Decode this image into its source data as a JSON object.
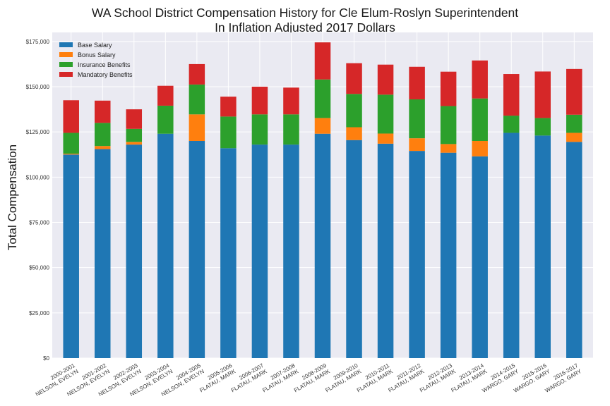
{
  "chart_data": {
    "type": "bar",
    "stacked": true,
    "title_line1": "WA School District Compensation History for Cle Elum-Roslyn Superintendent",
    "title_line2": "In Inflation Adjusted 2017 Dollars",
    "xlabel": "",
    "ylabel": "Total Compensation",
    "ylim": [
      0,
      180000
    ],
    "yticks": [
      0,
      25000,
      50000,
      75000,
      100000,
      125000,
      150000,
      175000
    ],
    "ytick_labels": [
      "$0",
      "$25,000",
      "$50,000",
      "$75,000",
      "$100,000",
      "$125,000",
      "$150,000",
      "$175,000"
    ],
    "grid": true,
    "legend_position": "top-left",
    "categories": [
      [
        "2000-2001",
        "NELSON, EVELYN"
      ],
      [
        "2001-2002",
        "NELSON, EVELYN"
      ],
      [
        "2002-2003",
        "NELSON, EVELYN"
      ],
      [
        "2003-2004",
        "NELSON, EVELYN"
      ],
      [
        "2004-2005",
        "NELSON, EVELYN"
      ],
      [
        "2005-2006",
        "FLATAU, MARK"
      ],
      [
        "2006-2007",
        "FLATAU, MARK"
      ],
      [
        "2007-2008",
        "FLATAU, MARK"
      ],
      [
        "2008-2009",
        "FLATAU, MARK"
      ],
      [
        "2009-2010",
        "FLATAU, MARK"
      ],
      [
        "2010-2011",
        "FLATAU, MARK"
      ],
      [
        "2011-2012",
        "FLATAU, MARK"
      ],
      [
        "2012-2013",
        "FLATAU, MARK"
      ],
      [
        "2013-2014",
        "FLATAU, MARK"
      ],
      [
        "2014-2015",
        "WARGO, GARY"
      ],
      [
        "2015-2016",
        "WARGO, GARY"
      ],
      [
        "2016-2017",
        "WARGO, GARY"
      ]
    ],
    "series": [
      {
        "name": "Base Salary",
        "color": "#1f77b4",
        "values": [
          112500,
          115500,
          118000,
          124000,
          120000,
          116000,
          118000,
          118000,
          124000,
          120500,
          118500,
          114500,
          113500,
          111500,
          124500,
          123000,
          119500
        ]
      },
      {
        "name": "Bonus Salary",
        "color": "#ff7f0e",
        "values": [
          500,
          1700,
          1500,
          0,
          14700,
          0,
          0,
          0,
          8700,
          7100,
          5600,
          7000,
          4800,
          8500,
          0,
          0,
          5000
        ]
      },
      {
        "name": "Insurance Benefits",
        "color": "#2ca02c",
        "values": [
          11500,
          12800,
          7200,
          15500,
          16500,
          17500,
          16700,
          16700,
          21300,
          18400,
          21500,
          21500,
          21000,
          23500,
          9500,
          9700,
          10000
        ]
      },
      {
        "name": "Mandatory Benefits",
        "color": "#d62728",
        "values": [
          18000,
          12300,
          10800,
          11000,
          11300,
          11000,
          15300,
          14800,
          20500,
          17000,
          16600,
          18000,
          19000,
          21000,
          23000,
          25700,
          25300
        ]
      }
    ]
  }
}
